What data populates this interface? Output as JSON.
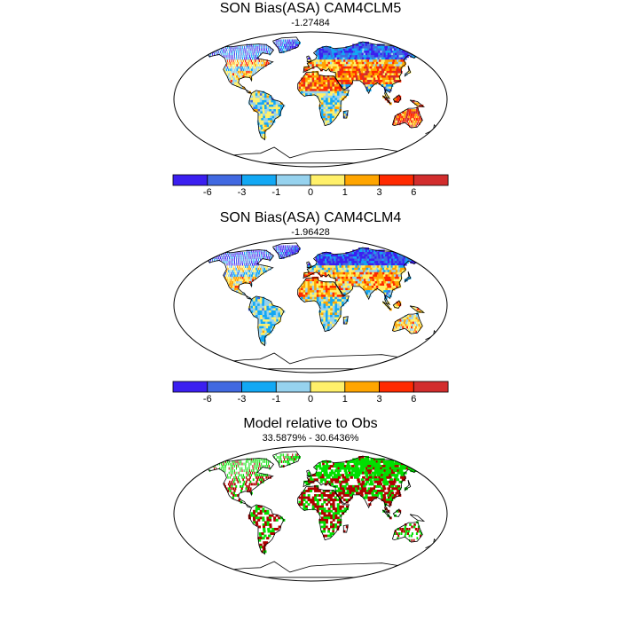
{
  "panels": [
    {
      "title": "SON Bias(ASA) CAM4CLM5",
      "subtitle": "-1.27484"
    },
    {
      "title": "SON Bias(ASA) CAM4CLM4",
      "subtitle": "-1.96428"
    },
    {
      "title": "Model relative to Obs",
      "subtitle": "33.5879% - 30.6436%"
    }
  ],
  "colorbar": {
    "colors": [
      "#3b1ff0",
      "#4169e1",
      "#12a8f4",
      "#96d2ee",
      "#fff06a",
      "#ffa500",
      "#ff2a00",
      "#d22d2d"
    ],
    "labels": [
      "-6",
      "-3",
      "-1",
      "0",
      "1",
      "3",
      "6"
    ]
  },
  "diff_colors": {
    "better": "#00e000",
    "worse": "#b00000"
  }
}
